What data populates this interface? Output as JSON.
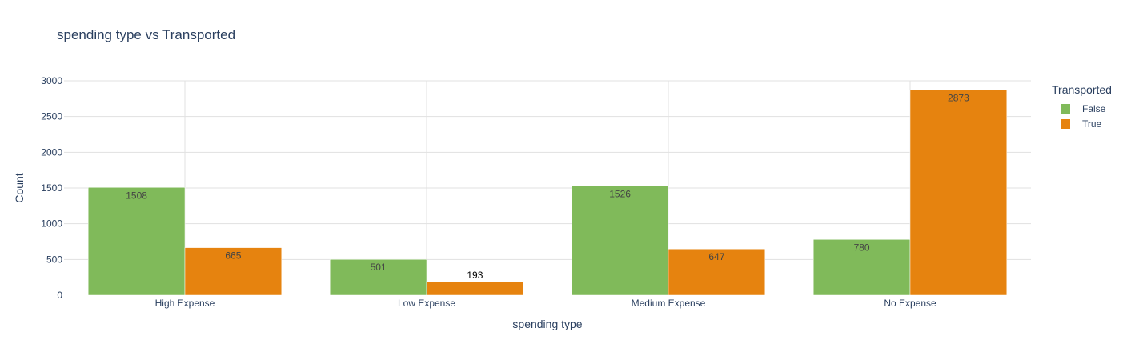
{
  "chart_data": {
    "type": "bar",
    "title": "spending type vs Transported",
    "xlabel": "spending type",
    "ylabel": "Count",
    "categories": [
      "High Expense",
      "Low Expense",
      "Medium Expense",
      "No Expense"
    ],
    "series": [
      {
        "name": "False",
        "color": "#80ba5a",
        "values": [
          1508,
          501,
          1526,
          780
        ]
      },
      {
        "name": "True",
        "color": "#e6830f",
        "values": [
          665,
          193,
          647,
          2873
        ]
      }
    ],
    "ylim": [
      0,
      3000
    ],
    "yticks": [
      0,
      500,
      1000,
      1500,
      2000,
      2500,
      3000
    ],
    "grid": true,
    "legend": {
      "title": "Transported",
      "placement": "right"
    }
  }
}
